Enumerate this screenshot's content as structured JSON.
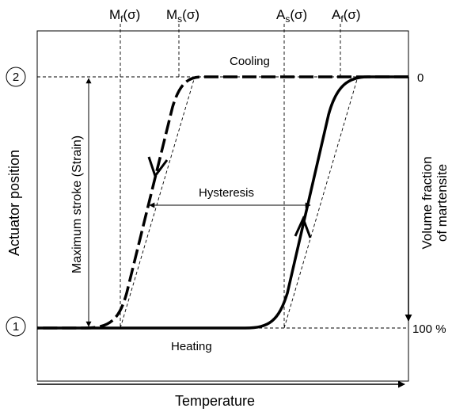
{
  "labels": {
    "mf": "M",
    "mf_sub": "f",
    "ms": "M",
    "ms_sub": "s",
    "as": "A",
    "as_sub": "s",
    "af": "A",
    "af_sub": "f",
    "sigma": "(σ)",
    "cooling": "Cooling",
    "heating": "Heating",
    "hysteresis": "Hysteresis",
    "max_stroke": "Maximum stroke (Strain)",
    "y_left": "Actuator position",
    "y_right_line1": "Volume fraction",
    "y_right_line2": "of martensite",
    "x_axis": "Temperature",
    "pos_2": "2",
    "pos_1": "1",
    "frac_top": "0",
    "frac_bottom": "100 %"
  }
}
